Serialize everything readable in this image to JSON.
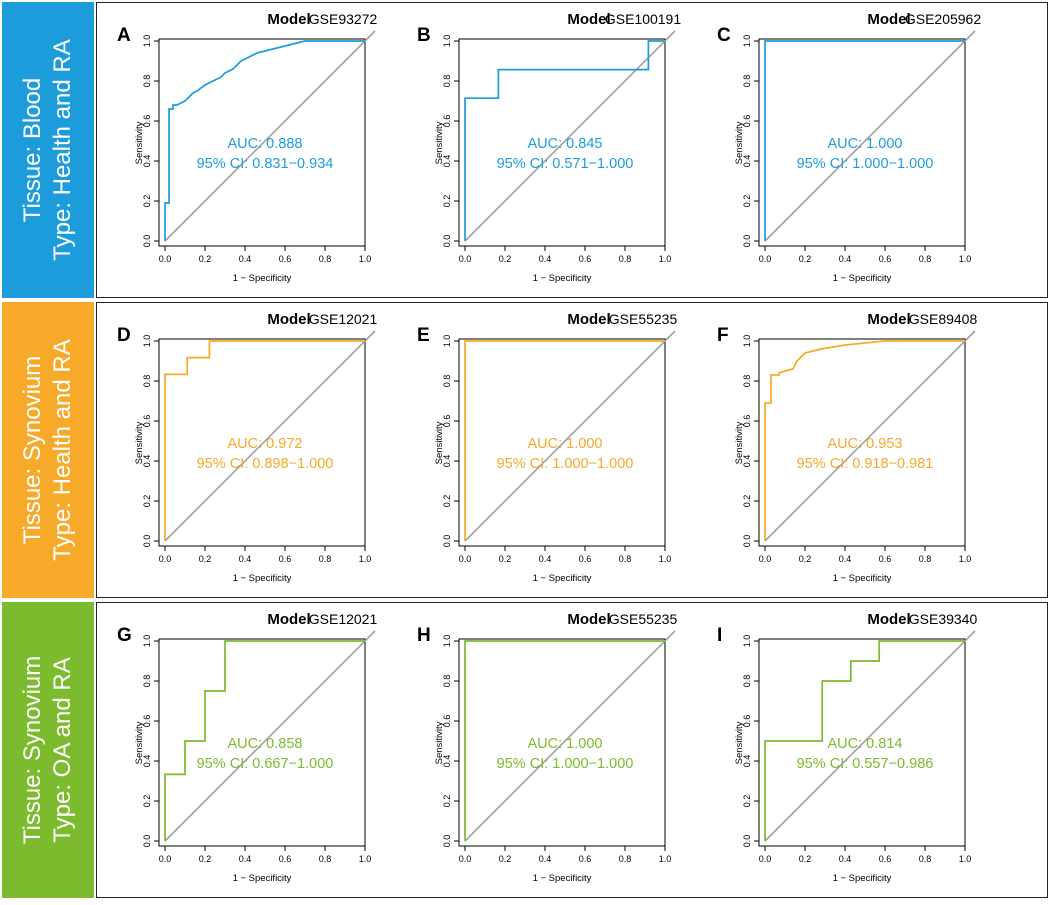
{
  "rows": [
    {
      "label_line1": "Tissue: Blood",
      "label_line2": "Type: Health and RA",
      "color": "#1c9cdb"
    },
    {
      "label_line1": "Tissue: Synovium",
      "label_line2": "Type: Health and RA",
      "color": "#f7a92a"
    },
    {
      "label_line1": "Tissue: Synovium",
      "label_line2": "Type: OA and RA",
      "color": "#7cba2e"
    }
  ],
  "chart_data": [
    {
      "type": "line",
      "panel": "A",
      "title": "Model",
      "dataset": "GSE93272",
      "color": "#1c9cdb",
      "xlabel": "1 − Specificity",
      "ylabel": "Sensitivity",
      "xlim": [
        0,
        1
      ],
      "ylim": [
        0,
        1
      ],
      "ticks": [
        "0.0",
        "0.2",
        "0.4",
        "0.6",
        "0.8",
        "1.0"
      ],
      "auc_text": "AUC: 0.888",
      "ci_text": "95% CI: 0.831−0.934",
      "x": [
        0,
        0,
        0.02,
        0.02,
        0.04,
        0.04,
        0.06,
        0.08,
        0.1,
        0.12,
        0.14,
        0.16,
        0.2,
        0.24,
        0.28,
        0.3,
        0.34,
        0.36,
        0.38,
        0.42,
        0.46,
        0.5,
        0.54,
        0.58,
        0.62,
        0.66,
        0.7,
        1
      ],
      "y": [
        0,
        0.19,
        0.19,
        0.66,
        0.66,
        0.68,
        0.68,
        0.69,
        0.7,
        0.72,
        0.74,
        0.75,
        0.78,
        0.8,
        0.82,
        0.84,
        0.86,
        0.88,
        0.9,
        0.92,
        0.94,
        0.95,
        0.96,
        0.97,
        0.98,
        0.99,
        1,
        1
      ]
    },
    {
      "type": "line",
      "panel": "B",
      "title": "Model",
      "dataset": "GSE100191",
      "color": "#1c9cdb",
      "xlabel": "1 − Specificity",
      "ylabel": "Sensitivity",
      "xlim": [
        0,
        1
      ],
      "ylim": [
        0,
        1
      ],
      "ticks": [
        "0.0",
        "0.2",
        "0.4",
        "0.6",
        "0.8",
        "1.0"
      ],
      "auc_text": "AUC: 0.845",
      "ci_text": "95% CI: 0.571−1.000",
      "x": [
        0,
        0,
        0.167,
        0.167,
        0.917,
        0.917,
        1
      ],
      "y": [
        0,
        0.714,
        0.714,
        0.857,
        0.857,
        1,
        1
      ]
    },
    {
      "type": "line",
      "panel": "C",
      "title": "Model",
      "dataset": "GSE205962",
      "color": "#1c9cdb",
      "xlabel": "1 − Specificity",
      "ylabel": "Sensitivity",
      "xlim": [
        0,
        1
      ],
      "ylim": [
        0,
        1
      ],
      "ticks": [
        "0.0",
        "0.2",
        "0.4",
        "0.6",
        "0.8",
        "1.0"
      ],
      "auc_text": "AUC: 1.000",
      "ci_text": "95% CI: 1.000−1.000",
      "x": [
        0,
        0,
        1
      ],
      "y": [
        0,
        1,
        1
      ]
    },
    {
      "type": "line",
      "panel": "D",
      "title": "Model",
      "dataset": "GSE12021",
      "color": "#f7a92a",
      "xlabel": "1 − Specificity",
      "ylabel": "Sensitivity",
      "xlim": [
        0,
        1
      ],
      "ylim": [
        0,
        1
      ],
      "ticks": [
        "0.0",
        "0.2",
        "0.4",
        "0.6",
        "0.8",
        "1.0"
      ],
      "auc_text": "AUC: 0.972",
      "ci_text": "95% CI: 0.898−1.000",
      "x": [
        0,
        0,
        0.111,
        0.111,
        0.222,
        0.222,
        1
      ],
      "y": [
        0,
        0.833,
        0.833,
        0.917,
        0.917,
        1,
        1
      ]
    },
    {
      "type": "line",
      "panel": "E",
      "title": "Model",
      "dataset": "GSE55235",
      "color": "#f7a92a",
      "xlabel": "1 − Specificity",
      "ylabel": "Sensitivity",
      "xlim": [
        0,
        1
      ],
      "ylim": [
        0,
        1
      ],
      "ticks": [
        "0.0",
        "0.2",
        "0.4",
        "0.6",
        "0.8",
        "1.0"
      ],
      "auc_text": "AUC: 1.000",
      "ci_text": "95% CI: 1.000−1.000",
      "x": [
        0,
        0,
        1
      ],
      "y": [
        0,
        1,
        1
      ]
    },
    {
      "type": "line",
      "panel": "F",
      "title": "Model",
      "dataset": "GSE89408",
      "color": "#f7a92a",
      "xlabel": "1 − Specificity",
      "ylabel": "Sensitivity",
      "xlim": [
        0,
        1
      ],
      "ylim": [
        0,
        1
      ],
      "ticks": [
        "0.0",
        "0.2",
        "0.4",
        "0.6",
        "0.8",
        "1.0"
      ],
      "auc_text": "AUC: 0.953",
      "ci_text": "95% CI: 0.918−0.981",
      "x": [
        0,
        0,
        0.03,
        0.03,
        0.07,
        0.07,
        0.1,
        0.14,
        0.16,
        0.18,
        0.2,
        0.24,
        0.28,
        0.34,
        0.4,
        0.5,
        0.6,
        1
      ],
      "y": [
        0,
        0.69,
        0.69,
        0.83,
        0.83,
        0.84,
        0.85,
        0.86,
        0.9,
        0.92,
        0.94,
        0.95,
        0.96,
        0.97,
        0.98,
        0.99,
        1,
        1
      ]
    },
    {
      "type": "line",
      "panel": "G",
      "title": "Model",
      "dataset": "GSE12021",
      "color": "#7cba2e",
      "xlabel": "1 − Specificity",
      "ylabel": "Sensitivity",
      "xlim": [
        0,
        1
      ],
      "ylim": [
        0,
        1
      ],
      "ticks": [
        "0.0",
        "0.2",
        "0.4",
        "0.6",
        "0.8",
        "1.0"
      ],
      "auc_text": "AUC: 0.858",
      "ci_text": "95% CI: 0.667−1.000",
      "x": [
        0,
        0,
        0.1,
        0.1,
        0.2,
        0.2,
        0.3,
        0.3,
        1
      ],
      "y": [
        0,
        0.333,
        0.333,
        0.5,
        0.5,
        0.75,
        0.75,
        1,
        1
      ]
    },
    {
      "type": "line",
      "panel": "H",
      "title": "Model",
      "dataset": "GSE55235",
      "color": "#7cba2e",
      "xlabel": "1 − Specificity",
      "ylabel": "Sensitivity",
      "xlim": [
        0,
        1
      ],
      "ylim": [
        0,
        1
      ],
      "ticks": [
        "0.0",
        "0.2",
        "0.4",
        "0.6",
        "0.8",
        "1.0"
      ],
      "auc_text": "AUC: 1.000",
      "ci_text": "95% CI: 1.000−1.000",
      "x": [
        0,
        0,
        1
      ],
      "y": [
        0,
        1,
        1
      ]
    },
    {
      "type": "line",
      "panel": "I",
      "title": "Model",
      "dataset": "GSE39340",
      "color": "#7cba2e",
      "xlabel": "1 − Specificity",
      "ylabel": "Sensitivity",
      "xlim": [
        0,
        1
      ],
      "ylim": [
        0,
        1
      ],
      "ticks": [
        "0.0",
        "0.2",
        "0.4",
        "0.6",
        "0.8",
        "1.0"
      ],
      "auc_text": "AUC: 0.814",
      "ci_text": "95% CI: 0.557−0.986",
      "x": [
        0,
        0,
        0.286,
        0.286,
        0.429,
        0.429,
        0.571,
        0.571,
        1
      ],
      "y": [
        0,
        0.5,
        0.5,
        0.8,
        0.8,
        0.9,
        0.9,
        1,
        1
      ]
    }
  ]
}
